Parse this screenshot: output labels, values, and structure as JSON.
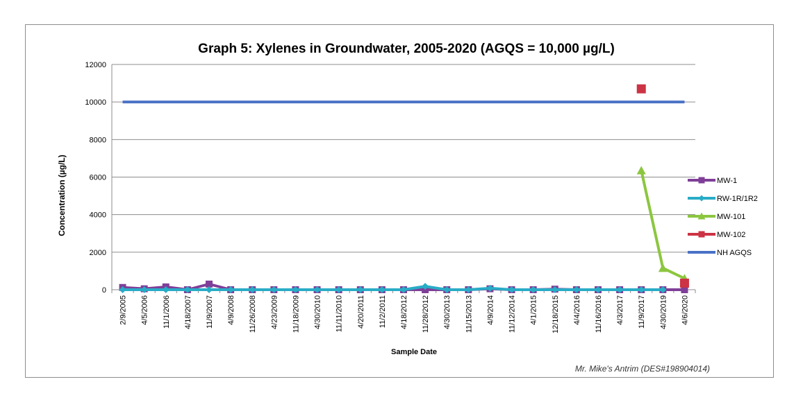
{
  "chart_data": {
    "type": "line",
    "title": "Graph 5: Xylenes in Groundwater, 2005-2020 (AGQS = 10,000 µg/L)",
    "xlabel": "Sample Date",
    "ylabel": "Concentration (µg/L)",
    "ylim": [
      0,
      12000
    ],
    "yticks": [
      0,
      2000,
      4000,
      6000,
      8000,
      10000,
      12000
    ],
    "grid": true,
    "legend_position": "right",
    "credit": "Mr. Mike's Antrim (DES#198904014)",
    "categories": [
      "2/9/2005",
      "4/5/2006",
      "11/1/2006",
      "4/18/2007",
      "11/9/2007",
      "4/9/2008",
      "11/26/2008",
      "4/23/2009",
      "11/18/2009",
      "4/30/2010",
      "11/11/2010",
      "4/20/2011",
      "11/2/2011",
      "4/18/2012",
      "11/28/2012",
      "4/30/2013",
      "11/15/2013",
      "4/9/2014",
      "11/12/2014",
      "4/1/2015",
      "12/18/2015",
      "4/4/2016",
      "11/16/2016",
      "4/3/2017",
      "11/9/2017",
      "4/30/2019",
      "4/6/2020"
    ],
    "series": [
      {
        "name": "MW-1",
        "color": "#7f3f98",
        "marker": "square",
        "values": [
          120,
          50,
          150,
          0,
          300,
          0,
          0,
          0,
          0,
          0,
          0,
          0,
          0,
          0,
          0,
          0,
          0,
          50,
          0,
          0,
          30,
          0,
          0,
          0,
          0,
          0,
          0
        ]
      },
      {
        "name": "RW-1R/1R2",
        "color": "#29acc6",
        "marker": "diamond",
        "values": [
          0,
          0,
          0,
          0,
          0,
          0,
          0,
          0,
          0,
          0,
          0,
          0,
          0,
          0,
          180,
          0,
          0,
          80,
          0,
          0,
          0,
          0,
          0,
          0,
          0,
          0,
          null
        ]
      },
      {
        "name": "MW-101",
        "color": "#8cc63f",
        "marker": "triangle",
        "values": [
          null,
          null,
          null,
          null,
          null,
          null,
          null,
          null,
          null,
          null,
          null,
          null,
          null,
          null,
          null,
          null,
          null,
          null,
          null,
          null,
          null,
          null,
          null,
          null,
          6350,
          1150,
          600
        ]
      },
      {
        "name": "MW-102",
        "color": "#cc3344",
        "marker": "square",
        "values": [
          null,
          null,
          null,
          null,
          null,
          null,
          null,
          null,
          null,
          null,
          null,
          null,
          null,
          null,
          null,
          null,
          null,
          null,
          null,
          null,
          null,
          null,
          null,
          null,
          10700,
          null,
          350
        ]
      },
      {
        "name": "NH AGQS",
        "color": "#4a72c6",
        "marker": "none",
        "values": [
          10000,
          10000,
          10000,
          10000,
          10000,
          10000,
          10000,
          10000,
          10000,
          10000,
          10000,
          10000,
          10000,
          10000,
          10000,
          10000,
          10000,
          10000,
          10000,
          10000,
          10000,
          10000,
          10000,
          10000,
          10000,
          10000,
          10000
        ]
      }
    ]
  }
}
